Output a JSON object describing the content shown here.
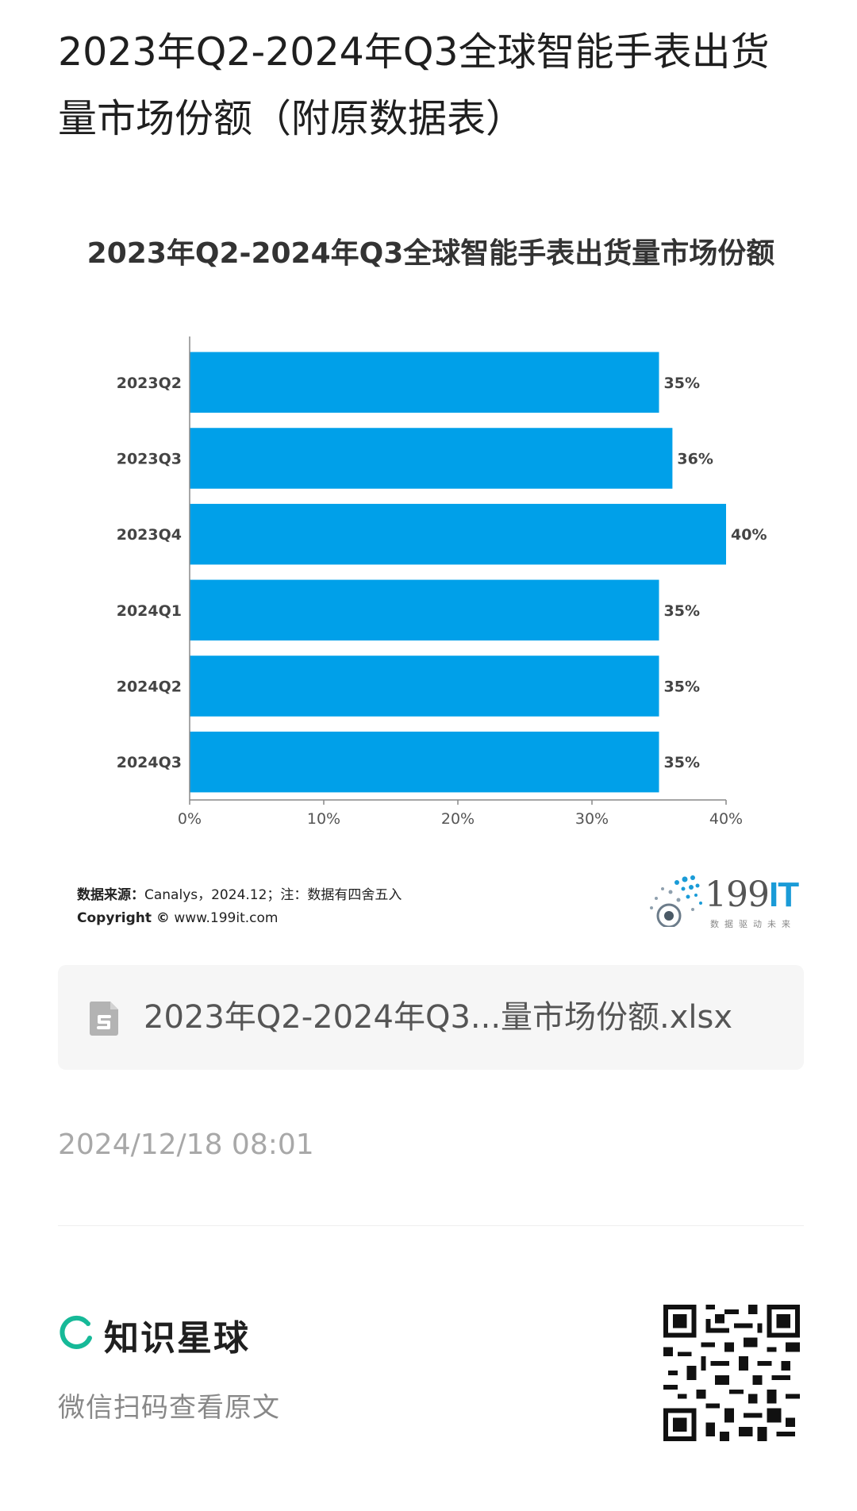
{
  "page": {
    "title_line1": "2023年Q2-2024年Q3全球智能手表出货",
    "title_line2": "量市场份额（附原数据表）"
  },
  "chart_data": {
    "type": "bar",
    "orientation": "horizontal",
    "title": "2023年Q2-2024年Q3全球智能手表出货量市场份额",
    "categories": [
      "2023Q2",
      "2023Q3",
      "2023Q4",
      "2024Q1",
      "2024Q2",
      "2024Q3"
    ],
    "values": [
      35,
      36,
      40,
      35,
      35,
      35
    ],
    "value_labels": [
      "35%",
      "36%",
      "40%",
      "35%",
      "35%",
      "35%"
    ],
    "xlim": [
      0,
      40
    ],
    "x_ticks": [
      "0%",
      "10%",
      "20%",
      "30%",
      "40%"
    ],
    "x_tick_values": [
      0,
      10,
      20,
      30,
      40
    ],
    "grid": false,
    "bar_color": "#00a0e9"
  },
  "source": {
    "label": "数据来源：",
    "text": "Canalys，2024.12；注：数据有四舍五入",
    "copyright_label": "Copyright ©",
    "copyright_site": "www.199it.com"
  },
  "brand": {
    "number": "199",
    "suffix": "IT",
    "tagline": "数据驱动未来",
    "accent": "#1a9bd7"
  },
  "attachment": {
    "icon": "spreadsheet-file-icon",
    "file_name": "2023年Q2-2024年Q3...量市场份额.xlsx"
  },
  "timestamp": "2024/12/18 08:01",
  "planet": {
    "name": "知识星球",
    "scan_hint": "微信扫码查看原文",
    "ring_color": "#16b998"
  }
}
